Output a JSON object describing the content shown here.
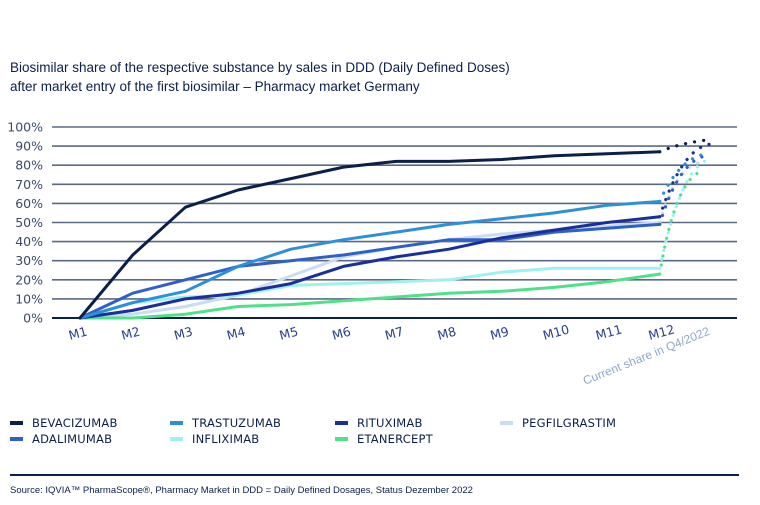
{
  "title_line1": "Biosimilar share of the respective substance by sales in DDD (Daily Defined Doses)",
  "title_line2": "after market entry of the first biosimilar – Pharmacy market Germany",
  "source": "Source: IQVIA™ PharmaScope®, Pharmacy Market in DDD = Daily Defined Dosages, Status Dezember 2022",
  "chart_data": {
    "type": "line",
    "categories": [
      "M1",
      "M2",
      "M3",
      "M4",
      "M5",
      "M6",
      "M7",
      "M8",
      "M9",
      "M10",
      "M11",
      "M12"
    ],
    "y_ticks": [
      "0%",
      "10%",
      "20%",
      "30%",
      "40%",
      "50%",
      "60%",
      "70%",
      "80%",
      "90%",
      "100%"
    ],
    "ylim": [
      0,
      100
    ],
    "grid": true,
    "legend_position": "bottom",
    "annotation": "Current share in Q4/2022",
    "series": [
      {
        "name": "BEVACIZUMAB",
        "color": "#0b1f4b",
        "values": [
          0,
          33,
          58,
          67,
          73,
          79,
          82,
          82,
          83,
          85,
          86,
          87
        ],
        "current_q4_2022": 93
      },
      {
        "name": "TRASTUZUMAB",
        "color": "#2e8fd9",
        "values": [
          0,
          8,
          14,
          27,
          36,
          41,
          45,
          49,
          52,
          55,
          59,
          61
        ],
        "current_q4_2022": 86
      },
      {
        "name": "RITUXIMAB",
        "color": "#1a2f9a",
        "values": [
          0,
          4,
          10,
          13,
          18,
          27,
          32,
          36,
          42,
          46,
          50,
          53
        ],
        "current_q4_2022": 91
      },
      {
        "name": "PEGFILGRASTIM",
        "color": "#c9dcf2",
        "values": [
          0,
          2,
          6,
          12,
          22,
          32,
          37,
          41,
          44,
          46,
          48,
          50
        ],
        "current_q4_2022": 82
      },
      {
        "name": "ADALIMUMAB",
        "color": "#2f5fc8",
        "values": [
          0,
          13,
          20,
          27,
          30,
          33,
          37,
          41,
          41,
          45,
          47,
          49
        ],
        "current_q4_2022": 85
      },
      {
        "name": "INFLIXIMAB",
        "color": "#9ef0f2",
        "values": [
          0,
          8,
          11,
          12,
          17,
          18,
          19,
          20,
          24,
          26,
          26,
          26
        ],
        "current_q4_2022": 83
      },
      {
        "name": "ETANERCEPT",
        "color": "#4fe08a",
        "values": [
          0,
          0,
          2,
          6,
          7,
          9,
          11,
          13,
          14,
          16,
          19,
          23
        ],
        "current_q4_2022": 77
      }
    ]
  },
  "legend_order": [
    0,
    1,
    2,
    3,
    4,
    5,
    6
  ]
}
